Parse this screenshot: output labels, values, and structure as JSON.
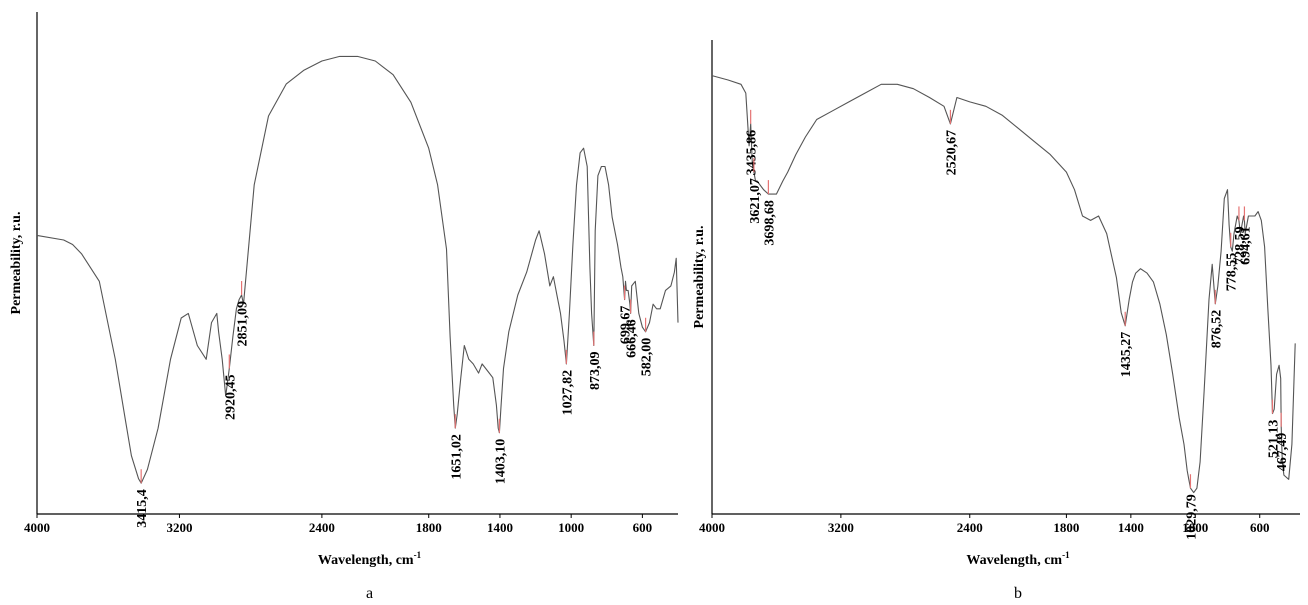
{
  "chart_data": [
    {
      "type": "line",
      "panel_label": "a",
      "xlabel": "Wavelength, cm",
      "xlabel_sup": "-1",
      "ylabel": "Permeability, r.u.",
      "xlim": [
        4000,
        400
      ],
      "x_reversed": true,
      "yticks_shown": false,
      "xticks": [
        4000,
        3200,
        2400,
        1800,
        1400,
        1000,
        600
      ],
      "xtick_labels": [
        "4000",
        "3200",
        "2400",
        "1800",
        "1400",
        "1000",
        "600"
      ],
      "series": [
        {
          "x": [
            4000,
            3850,
            3800,
            3750,
            3650,
            3560,
            3500,
            3470,
            3430,
            3415,
            3380,
            3320,
            3250,
            3190,
            3150,
            3100,
            3050,
            3020,
            2990,
            2980,
            2960,
            2940,
            2920,
            2900,
            2880,
            2865,
            2851,
            2840,
            2780,
            2700,
            2600,
            2500,
            2400,
            2300,
            2200,
            2100,
            2000,
            1900,
            1800,
            1750,
            1700,
            1680,
            1660,
            1651,
            1640,
            1620,
            1600,
            1575,
            1550,
            1520,
            1500,
            1480,
            1460,
            1440,
            1420,
            1410,
            1403,
            1395,
            1380,
            1350,
            1300,
            1250,
            1200,
            1180,
            1150,
            1120,
            1100,
            1080,
            1060,
            1040,
            1027,
            1010,
            990,
            970,
            950,
            930,
            910,
            895,
            885,
            873,
            865,
            850,
            830,
            810,
            790,
            770,
            740,
            720,
            710,
            700,
            695,
            690,
            680,
            670,
            666,
            660,
            640,
            620,
            600,
            582,
            560,
            540,
            520,
            500,
            470,
            440,
            420,
            410,
            400
          ],
          "y": [
            57,
            56,
            55,
            53,
            47,
            30,
            16,
            9,
            4,
            3,
            6,
            15,
            30,
            39,
            40,
            33,
            30,
            38,
            40,
            36,
            30,
            22,
            28,
            35,
            41,
            43,
            44,
            42,
            68,
            83,
            90,
            93,
            95,
            96,
            96,
            95,
            92,
            86,
            76,
            68,
            54,
            35,
            20,
            15,
            18,
            26,
            33,
            30,
            29,
            27,
            29,
            28,
            27,
            26,
            20,
            15,
            14,
            19,
            28,
            36,
            44,
            49,
            56,
            58,
            53,
            46,
            48,
            44,
            40,
            34,
            29,
            40,
            55,
            68,
            75,
            76,
            72,
            50,
            40,
            33,
            58,
            70,
            72,
            72,
            68,
            61,
            55,
            50,
            48,
            43,
            47,
            45,
            45,
            42,
            40,
            46,
            47,
            40,
            37,
            36,
            38,
            42,
            41,
            41,
            45,
            46,
            49,
            52,
            38
          ]
        }
      ],
      "peaks": [
        {
          "x": 3415,
          "label": "3415,4"
        },
        {
          "x": 2920,
          "label": "2920,45"
        },
        {
          "x": 2851,
          "label": "2851,09"
        },
        {
          "x": 1651,
          "label": "1651,02"
        },
        {
          "x": 1403,
          "label": "1403,10"
        },
        {
          "x": 1027,
          "label": "1027,82"
        },
        {
          "x": 873,
          "label": "873,09"
        },
        {
          "x": 700,
          "label": "699,67"
        },
        {
          "x": 666,
          "label": "666,46"
        },
        {
          "x": 582,
          "label": "582,00"
        }
      ]
    },
    {
      "type": "line",
      "panel_label": "b",
      "xlabel": "Wavelength, cm",
      "xlabel_sup": "-1",
      "ylabel": "Permeability, r.u.",
      "xlim": [
        4000,
        350
      ],
      "x_reversed": true,
      "yticks_shown": false,
      "xticks": [
        4000,
        3200,
        2400,
        1800,
        1400,
        1000,
        600
      ],
      "xtick_labels": [
        "4000",
        "3200",
        "2400",
        "1800",
        "1400",
        "1000",
        "600"
      ],
      "series": [
        {
          "x": [
            4000,
            3900,
            3820,
            3790,
            3770,
            3760,
            3750,
            3740,
            3730,
            3720,
            3700,
            3680,
            3650,
            3600,
            3560,
            3530,
            3480,
            3420,
            3350,
            3250,
            3150,
            3050,
            2950,
            2850,
            2750,
            2650,
            2560,
            2520,
            2480,
            2400,
            2300,
            2200,
            2100,
            2000,
            1900,
            1800,
            1750,
            1700,
            1650,
            1600,
            1550,
            1520,
            1490,
            1460,
            1435,
            1410,
            1390,
            1370,
            1340,
            1300,
            1260,
            1220,
            1180,
            1140,
            1100,
            1070,
            1050,
            1040,
            1030,
            1010,
            990,
            970,
            945,
            915,
            895,
            880,
            876,
            860,
            840,
            820,
            800,
            790,
            780,
            770,
            760,
            740,
            729,
            720,
            700,
            695,
            690,
            670,
            650,
            630,
            610,
            590,
            570,
            550,
            530,
            521,
            510,
            495,
            480,
            470,
            467,
            460,
            450,
            420,
            400,
            380
          ],
          "y": [
            96,
            95,
            94,
            92,
            80,
            85,
            76,
            74,
            72,
            72,
            71,
            70,
            69,
            69,
            72,
            74,
            78,
            82,
            86,
            88,
            90,
            92,
            94,
            94,
            93,
            91,
            89,
            85,
            91,
            90,
            89,
            87,
            84,
            81,
            78,
            74,
            70,
            64,
            63,
            64,
            60,
            55,
            50,
            42,
            39,
            45,
            49,
            51,
            52,
            51,
            49,
            44,
            37,
            28,
            18,
            12,
            6,
            4,
            2,
            1,
            2,
            8,
            24,
            45,
            53,
            46,
            44,
            48,
            56,
            68,
            70,
            62,
            57,
            56,
            60,
            64,
            63,
            60,
            64,
            63,
            60,
            64,
            64,
            64,
            65,
            63,
            57,
            43,
            30,
            19,
            20,
            28,
            30,
            27,
            16,
            8,
            5,
            4,
            12,
            35
          ]
        }
      ],
      "peaks": [
        {
          "x": 3760,
          "label": "3435,86"
        },
        {
          "x": 3740,
          "label": "3621,07"
        },
        {
          "x": 3650,
          "label": "3698,68"
        },
        {
          "x": 2520,
          "label": "2520,67"
        },
        {
          "x": 1435,
          "label": "1435,27"
        },
        {
          "x": 1030,
          "label": "1029,79"
        },
        {
          "x": 876,
          "label": "876,52"
        },
        {
          "x": 780,
          "label": "778,55"
        },
        {
          "x": 729,
          "label": "728,59"
        },
        {
          "x": 695,
          "label": "694,61"
        },
        {
          "x": 521,
          "label": "521,13"
        },
        {
          "x": 467,
          "label": "467,49"
        }
      ]
    }
  ]
}
